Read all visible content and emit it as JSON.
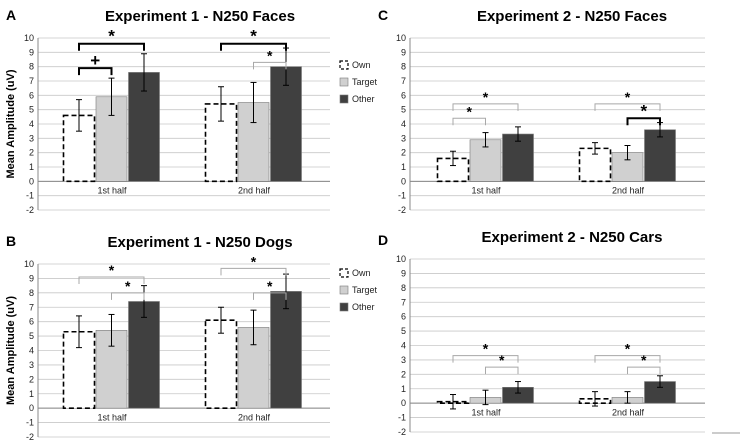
{
  "chart_data": [
    {
      "letter": "A",
      "type": "bar",
      "title": "Experiment 1 - N250 Faces",
      "ylabel": "Mean Amplitude (uV)",
      "ylim": [
        -2,
        10
      ],
      "ticks": [
        "-2",
        "-1",
        "0",
        "1",
        "2",
        "3",
        "4",
        "5",
        "6",
        "7",
        "8",
        "9",
        "10"
      ],
      "categories": [
        "1st half",
        "2nd half"
      ],
      "series": [
        {
          "name": "Own",
          "values": [
            4.6,
            5.4
          ],
          "errors": [
            1.1,
            1.2
          ]
        },
        {
          "name": "Target",
          "values": [
            5.9,
            5.5
          ],
          "errors": [
            1.3,
            1.4
          ]
        },
        {
          "name": "Other",
          "values": [
            7.6,
            8.0
          ],
          "errors": [
            1.3,
            1.3
          ]
        }
      ],
      "annotations": [
        {
          "cat": 0,
          "from": 0,
          "to": 1,
          "label": "+",
          "level": 7.9,
          "style": "bold"
        },
        {
          "cat": 0,
          "from": 0,
          "to": 2,
          "label": "*",
          "level": 9.6,
          "style": "bold"
        },
        {
          "cat": 1,
          "from": 0,
          "to": 2,
          "label": "*",
          "level": 9.6,
          "style": "bold"
        },
        {
          "cat": 1,
          "from": 1,
          "to": 2,
          "label": "*",
          "level": 8.3,
          "style": "light"
        }
      ],
      "legend": [
        "Own",
        "Target",
        "Other"
      ]
    },
    {
      "letter": "B",
      "type": "bar",
      "title": "Experiment 1 - N250 Dogs",
      "ylabel": "Mean Amplitude (uV)",
      "ylim": [
        -2,
        10
      ],
      "ticks": [
        "-2",
        "-1",
        "0",
        "1",
        "2",
        "3",
        "4",
        "5",
        "6",
        "7",
        "8",
        "9",
        "10"
      ],
      "categories": [
        "1st half",
        "2nd half"
      ],
      "series": [
        {
          "name": "Own",
          "values": [
            5.3,
            6.1
          ],
          "errors": [
            1.1,
            0.9
          ]
        },
        {
          "name": "Target",
          "values": [
            5.4,
            5.6
          ],
          "errors": [
            1.1,
            1.2
          ]
        },
        {
          "name": "Other",
          "values": [
            7.4,
            8.1
          ],
          "errors": [
            1.1,
            1.2
          ]
        }
      ],
      "annotations": [
        {
          "cat": 0,
          "from": 0,
          "to": 2,
          "label": "*",
          "level": 9.1,
          "style": "light"
        },
        {
          "cat": 0,
          "from": 1,
          "to": 2,
          "label": "*",
          "level": 8.0,
          "style": "light"
        },
        {
          "cat": 1,
          "from": 0,
          "to": 2,
          "label": "*",
          "level": 9.7,
          "style": "light"
        },
        {
          "cat": 1,
          "from": 1,
          "to": 2,
          "label": "*",
          "level": 8.0,
          "style": "light"
        }
      ],
      "legend": [
        "Own",
        "Target",
        "Other"
      ]
    },
    {
      "letter": "C",
      "type": "bar",
      "title": "Experiment 2 - N250 Faces",
      "ylabel": "",
      "ylim": [
        -2,
        10
      ],
      "ticks": [
        "-2",
        "-1",
        "0",
        "1",
        "2",
        "3",
        "4",
        "5",
        "6",
        "7",
        "8",
        "9",
        "10"
      ],
      "categories": [
        "1st half",
        "2nd half"
      ],
      "series": [
        {
          "name": "Own",
          "values": [
            1.6,
            2.3
          ],
          "errors": [
            0.5,
            0.4
          ]
        },
        {
          "name": "Target",
          "values": [
            2.9,
            2.0
          ],
          "errors": [
            0.5,
            0.5
          ]
        },
        {
          "name": "Other",
          "values": [
            3.3,
            3.6
          ],
          "errors": [
            0.5,
            0.5
          ]
        }
      ],
      "annotations": [
        {
          "cat": 0,
          "from": 0,
          "to": 2,
          "label": "*",
          "level": 5.4,
          "style": "light"
        },
        {
          "cat": 0,
          "from": 0,
          "to": 1,
          "label": "*",
          "level": 4.4,
          "style": "light"
        },
        {
          "cat": 1,
          "from": 0,
          "to": 2,
          "label": "*",
          "level": 5.4,
          "style": "light"
        },
        {
          "cat": 1,
          "from": 1,
          "to": 2,
          "label": "*",
          "level": 4.4,
          "style": "bold"
        }
      ],
      "legend": []
    },
    {
      "letter": "D",
      "type": "bar",
      "title": "Experiment 2 - N250 Cars",
      "ylabel": "",
      "ylim": [
        -2,
        10
      ],
      "ticks": [
        "-2",
        "-1",
        "0",
        "1",
        "2",
        "3",
        "4",
        "5",
        "6",
        "7",
        "8",
        "9",
        "10"
      ],
      "categories": [
        "1st half",
        "2nd half"
      ],
      "series": [
        {
          "name": "Own",
          "values": [
            0.1,
            0.3
          ],
          "errors": [
            0.5,
            0.5
          ]
        },
        {
          "name": "Target",
          "values": [
            0.4,
            0.4
          ],
          "errors": [
            0.5,
            0.4
          ]
        },
        {
          "name": "Other",
          "values": [
            1.1,
            1.5
          ],
          "errors": [
            0.4,
            0.4
          ]
        }
      ],
      "annotations": [
        {
          "cat": 0,
          "from": 0,
          "to": 2,
          "label": "*",
          "level": 3.3,
          "style": "light"
        },
        {
          "cat": 0,
          "from": 1,
          "to": 2,
          "label": "*",
          "level": 2.5,
          "style": "light"
        },
        {
          "cat": 1,
          "from": 0,
          "to": 2,
          "label": "*",
          "level": 3.3,
          "style": "light"
        },
        {
          "cat": 1,
          "from": 1,
          "to": 2,
          "label": "*",
          "level": 2.5,
          "style": "light"
        }
      ],
      "legend": []
    }
  ],
  "colors": {
    "own_fill": "#ffffff",
    "own_stroke": "#000000",
    "target_fill": "#d0d0d0",
    "other_fill": "#404040",
    "grid": "#c8c8c8",
    "axis": "#888888"
  }
}
